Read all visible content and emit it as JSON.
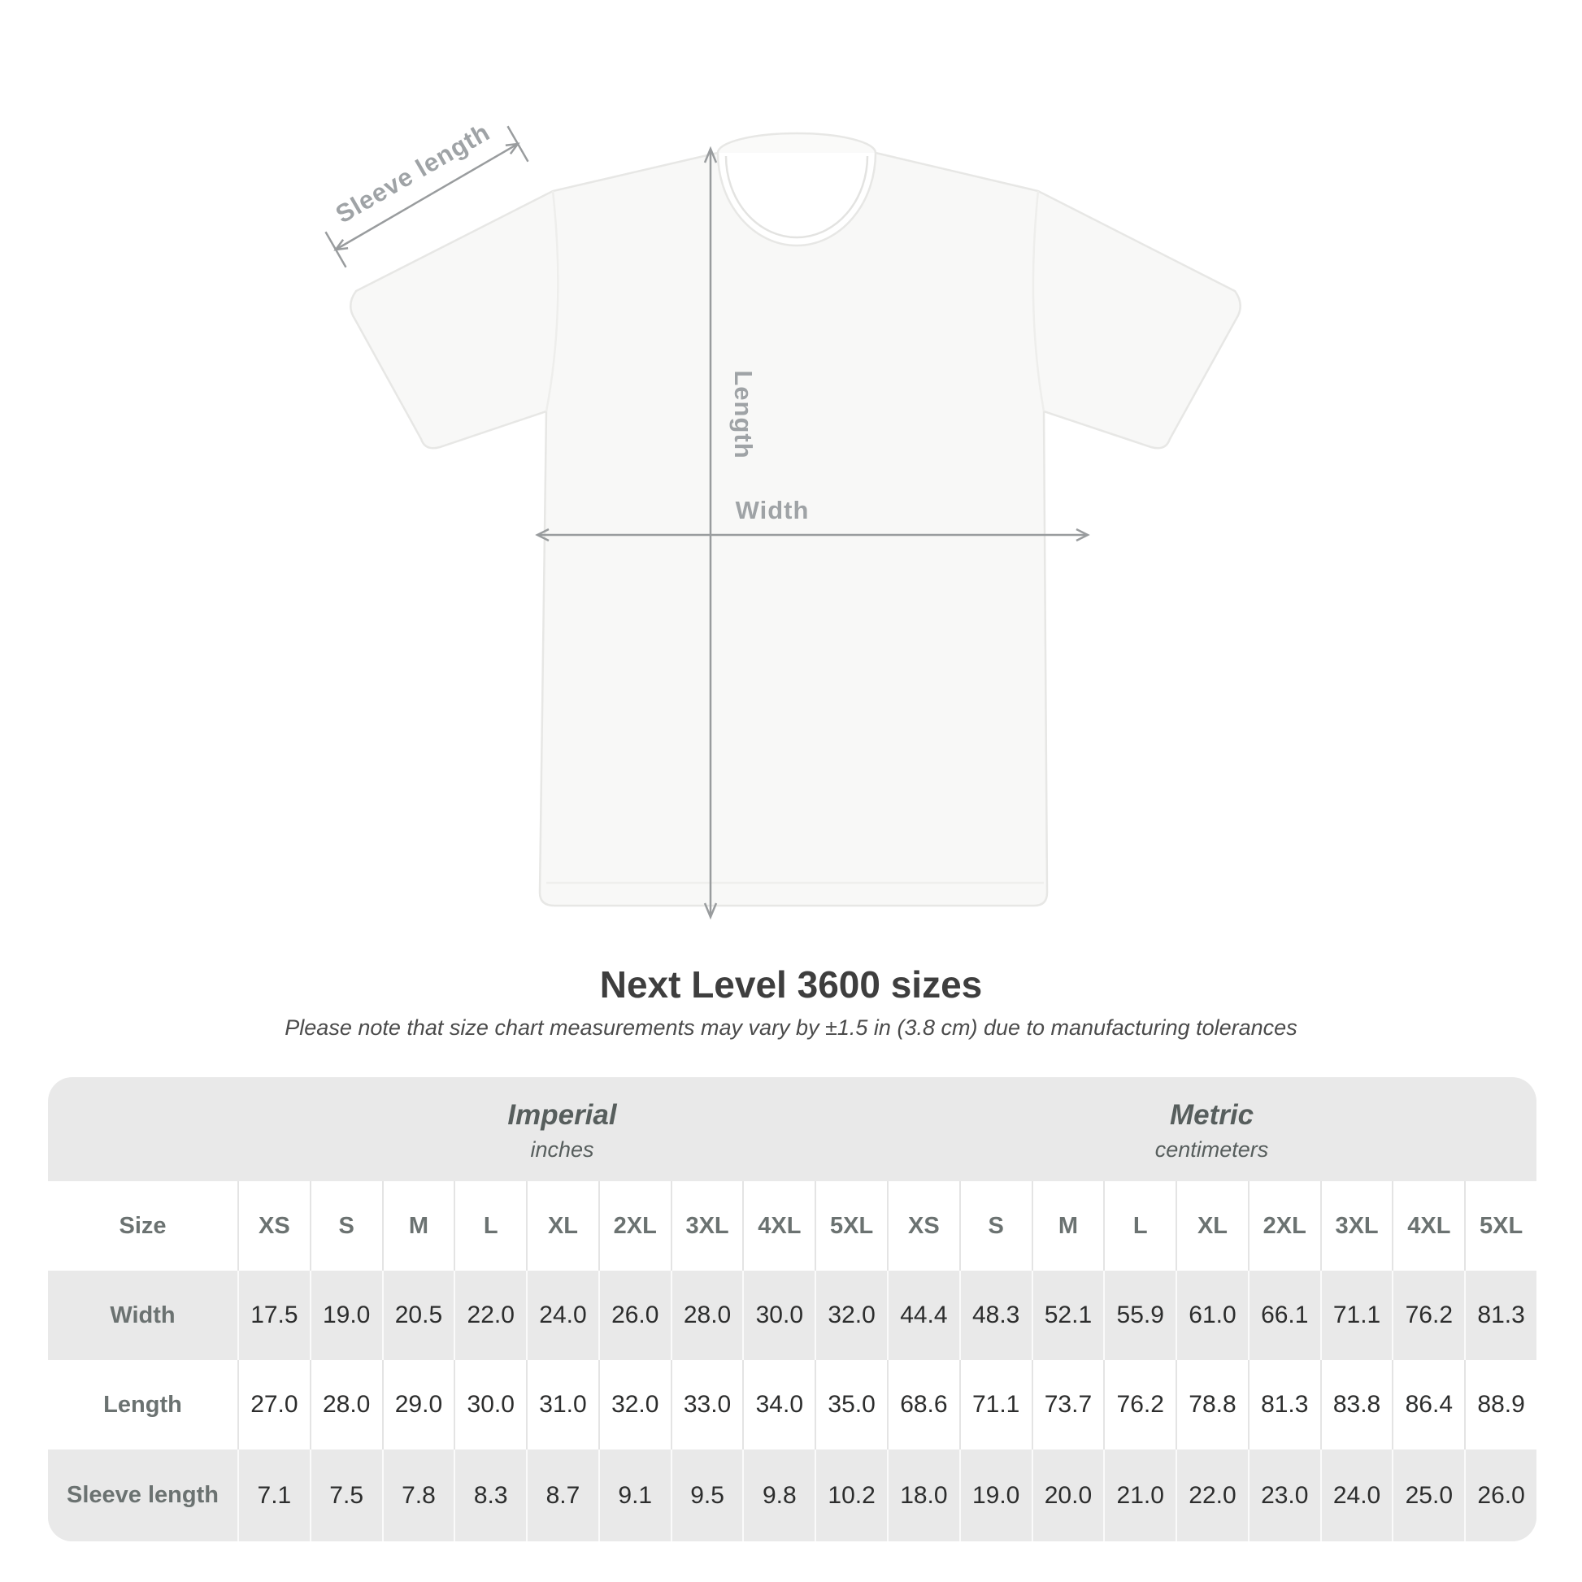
{
  "title": "Next Level 3600 sizes",
  "note": "Please note that size chart measurements may vary by ±1.5 in (3.8 cm) due to manufacturing tolerances",
  "diagram": {
    "sleeve_label": "Sleeve length",
    "length_label": "Length",
    "width_label": "Width",
    "line_color": "#999c9e",
    "label_color": "#9fa3a6",
    "shirt_fill": "#f8f8f7",
    "shirt_edge": "#e7e7e5"
  },
  "table": {
    "size_label": "Size",
    "sizes": [
      "XS",
      "S",
      "M",
      "L",
      "XL",
      "2XL",
      "3XL",
      "4XL",
      "5XL"
    ],
    "unit_groups": [
      {
        "name": "Imperial",
        "unit": "inches"
      },
      {
        "name": "Metric",
        "unit": "centimeters"
      }
    ],
    "rows": [
      {
        "label": "Width",
        "imperial": [
          "17.5",
          "19.0",
          "20.5",
          "22.0",
          "24.0",
          "26.0",
          "28.0",
          "30.0",
          "32.0"
        ],
        "metric": [
          "44.4",
          "48.3",
          "52.1",
          "55.9",
          "61.0",
          "66.1",
          "71.1",
          "76.2",
          "81.3"
        ]
      },
      {
        "label": "Length",
        "imperial": [
          "27.0",
          "28.0",
          "29.0",
          "30.0",
          "31.0",
          "32.0",
          "33.0",
          "34.0",
          "35.0"
        ],
        "metric": [
          "68.6",
          "71.1",
          "73.7",
          "76.2",
          "78.8",
          "81.3",
          "83.8",
          "86.4",
          "88.9"
        ]
      },
      {
        "label": "Sleeve length",
        "imperial": [
          "7.1",
          "7.5",
          "7.8",
          "8.3",
          "8.7",
          "9.1",
          "9.5",
          "9.8",
          "10.2"
        ],
        "metric": [
          "18.0",
          "19.0",
          "20.0",
          "21.0",
          "22.0",
          "23.0",
          "24.0",
          "25.0",
          "26.0"
        ]
      }
    ],
    "colors": {
      "table_bg": "#e9e9e9",
      "row_white": "#ffffff",
      "label_text": "#6b7271",
      "value_text": "#2c2d2d",
      "group_header_text": "#575e5d",
      "separator_on_white": "#e4e4e4",
      "separator_on_gray": "#fafafa"
    }
  },
  "chart_data": {
    "type": "table",
    "title": "Next Level 3600 sizes",
    "note": "Please note that size chart measurements may vary by ±1.5 in (3.8 cm) due to manufacturing tolerances",
    "size_columns": [
      "XS",
      "S",
      "M",
      "L",
      "XL",
      "2XL",
      "3XL",
      "4XL",
      "5XL"
    ],
    "imperial_inches": {
      "Width": [
        17.5,
        19.0,
        20.5,
        22.0,
        24.0,
        26.0,
        28.0,
        30.0,
        32.0
      ],
      "Length": [
        27.0,
        28.0,
        29.0,
        30.0,
        31.0,
        32.0,
        33.0,
        34.0,
        35.0
      ],
      "Sleeve length": [
        7.1,
        7.5,
        7.8,
        8.3,
        8.7,
        9.1,
        9.5,
        9.8,
        10.2
      ]
    },
    "metric_centimeters": {
      "Width": [
        44.4,
        48.3,
        52.1,
        55.9,
        61.0,
        66.1,
        71.1,
        76.2,
        81.3
      ],
      "Length": [
        68.6,
        71.1,
        73.7,
        76.2,
        78.8,
        81.3,
        83.8,
        86.4,
        88.9
      ],
      "Sleeve length": [
        18.0,
        19.0,
        20.0,
        21.0,
        22.0,
        23.0,
        24.0,
        25.0,
        26.0
      ]
    }
  }
}
